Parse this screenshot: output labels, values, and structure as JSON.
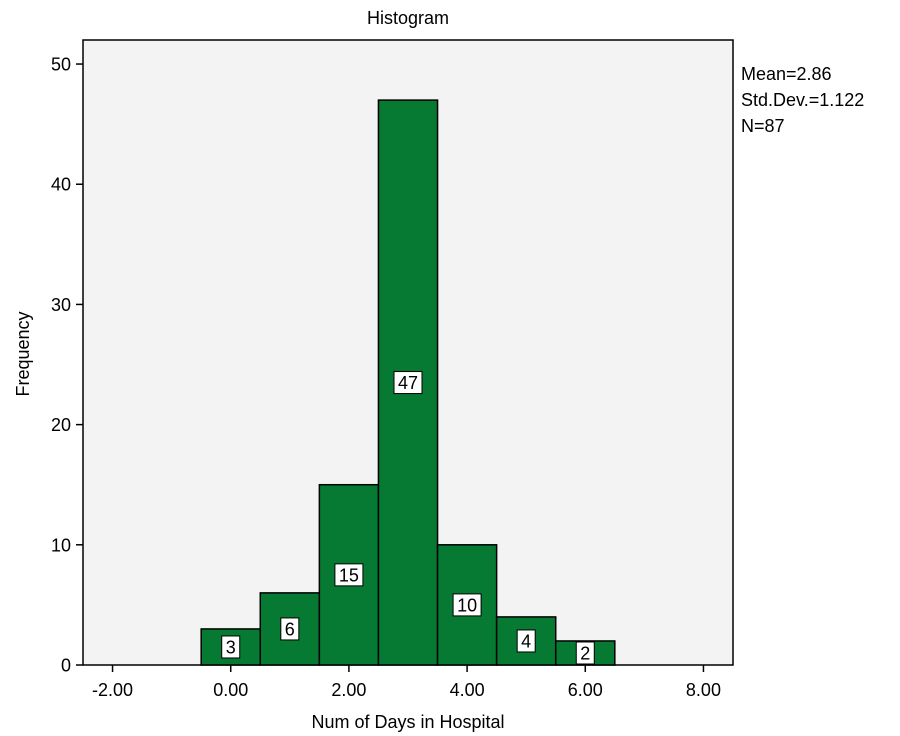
{
  "chart_data": {
    "type": "bar",
    "title": "Histogram",
    "xlabel": "Num of Days in Hospital",
    "ylabel": "Frequency",
    "xlim": [
      -2.5,
      8.5
    ],
    "ylim": [
      0,
      52
    ],
    "x_ticks": [
      -2,
      0,
      2,
      4,
      6,
      8
    ],
    "x_tick_labels": [
      "-2.00",
      "0.00",
      "2.00",
      "4.00",
      "6.00",
      "8.00"
    ],
    "y_ticks": [
      0,
      10,
      20,
      30,
      40,
      50
    ],
    "y_tick_labels": [
      "0",
      "10",
      "20",
      "30",
      "40",
      "50"
    ],
    "bins": [
      {
        "from": -0.5,
        "to": 0.5,
        "value": 3,
        "label": "3"
      },
      {
        "from": 0.5,
        "to": 1.5,
        "value": 6,
        "label": "6"
      },
      {
        "from": 1.5,
        "to": 2.5,
        "value": 15,
        "label": "15"
      },
      {
        "from": 2.5,
        "to": 3.5,
        "value": 47,
        "label": "47"
      },
      {
        "from": 3.5,
        "to": 4.5,
        "value": 10,
        "label": "10"
      },
      {
        "from": 4.5,
        "to": 5.5,
        "value": 4,
        "label": "4"
      },
      {
        "from": 5.5,
        "to": 6.5,
        "value": 2,
        "label": "2"
      }
    ],
    "stats": {
      "mean": "Mean=2.86",
      "std_dev": "Std.Dev.=1.122",
      "n": "N=87"
    },
    "grid": false,
    "bar_color": "#067a32",
    "plot_background": "#f3f3f3"
  }
}
